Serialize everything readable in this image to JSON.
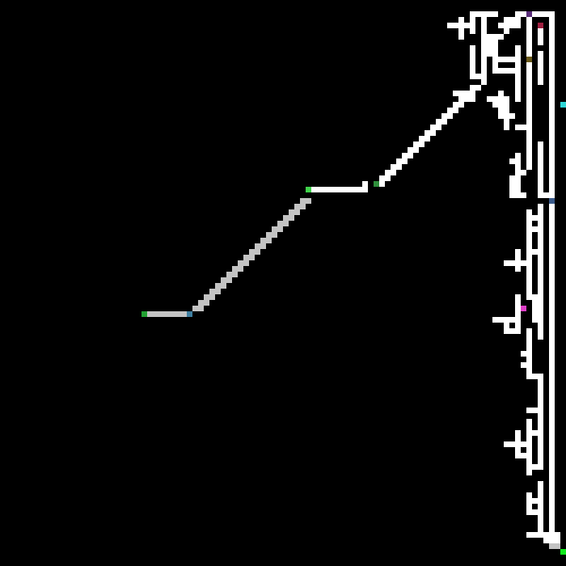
{
  "game": {
    "type": "maze-path-traversal",
    "grid": {
      "cols": 100,
      "rows": 100
    },
    "colors": {
      "background": "#000000",
      "maze_wall": "#ffffff",
      "solved_path": "#c3c3c3",
      "start_marker": "#22a132",
      "end_marker": "#10e81c",
      "waypoint_green": "#2f8f3c",
      "waypoint_lime": "#3fd24a",
      "waypoint_blue": "#3f7fa0",
      "waypoint_cyan": "#2fd7d7",
      "waypoint_magenta": "#e040c8",
      "waypoint_crimson": "#9e2040",
      "waypoint_olive": "#6b5a1a",
      "waypoint_purple": "#5a2e7a",
      "waypoint_steel": "#3a5a8a"
    },
    "markers": [
      {
        "name": "start-marker",
        "color_key": "start_marker"
      },
      {
        "name": "end-marker",
        "color_key": "end_marker"
      },
      {
        "name": "waypoint-marker-1",
        "color_key": "waypoint_blue"
      },
      {
        "name": "waypoint-marker-2",
        "color_key": "waypoint_lime"
      },
      {
        "name": "waypoint-marker-3",
        "color_key": "waypoint_green"
      },
      {
        "name": "waypoint-marker-4",
        "color_key": "waypoint_cyan"
      },
      {
        "name": "waypoint-marker-5",
        "color_key": "waypoint_magenta"
      },
      {
        "name": "waypoint-marker-6",
        "color_key": "waypoint_crimson"
      },
      {
        "name": "waypoint-marker-7",
        "color_key": "waypoint_olive"
      },
      {
        "name": "waypoint-marker-8",
        "color_key": "waypoint_purple"
      },
      {
        "name": "waypoint-marker-9",
        "color_key": "waypoint_steel"
      }
    ]
  }
}
